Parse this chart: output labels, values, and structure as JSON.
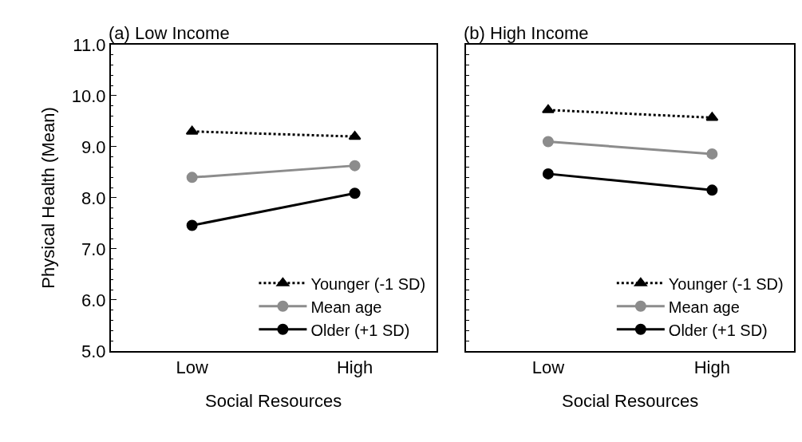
{
  "chart_data": [
    {
      "type": "line",
      "title": "(a) Low Income",
      "xlabel": "Social Resources",
      "ylabel": "Physical Health (Mean)",
      "categories": [
        "Low",
        "High"
      ],
      "ylim": [
        5,
        11
      ],
      "yticks": [
        {
          "value": 5,
          "label": "5.0"
        },
        {
          "value": 6,
          "label": "6.0"
        },
        {
          "value": 7,
          "label": "7.0"
        },
        {
          "value": 8,
          "label": "8.0"
        },
        {
          "value": 9,
          "label": "9.0"
        },
        {
          "value": 10,
          "label": "10.0"
        },
        {
          "value": 11,
          "label": "11.0"
        }
      ],
      "legend": "bottom right",
      "series": [
        {
          "name": "Younger (-1 SD)",
          "color": "#000000",
          "values": [
            9.3,
            9.2
          ],
          "marker": "triangle",
          "line_style": "dotted"
        },
        {
          "name": "Mean age",
          "color": "#8c8c8c",
          "values": [
            8.4,
            8.63
          ],
          "marker": "circle",
          "line_style": "solid"
        },
        {
          "name": "Older (+1 SD)",
          "color": "#000000",
          "values": [
            7.46,
            8.09
          ],
          "marker": "circle",
          "line_style": "solid"
        }
      ]
    },
    {
      "type": "line",
      "title": "(b) High Income",
      "xlabel": "Social Resources",
      "categories": [
        "Low",
        "High"
      ],
      "ylim": [
        5,
        11
      ],
      "yticks": [
        {
          "value": 5,
          "label": null
        },
        {
          "value": 6,
          "label": null
        },
        {
          "value": 7,
          "label": null
        },
        {
          "value": 8,
          "label": null
        },
        {
          "value": 9,
          "label": null
        },
        {
          "value": 10,
          "label": null
        },
        {
          "value": 11,
          "label": null
        }
      ],
      "tick_labels": "x",
      "legend": "bottom right",
      "series": [
        {
          "name": "Younger (-1 SD)",
          "color": "#000000",
          "values": [
            9.72,
            9.57
          ],
          "marker": "triangle",
          "line_style": "dotted"
        },
        {
          "name": "Mean age",
          "color": "#8c8c8c",
          "values": [
            9.1,
            8.86
          ],
          "marker": "circle",
          "line_style": "solid"
        },
        {
          "name": "Older (+1 SD)",
          "color": "#000000",
          "values": [
            8.47,
            8.15
          ],
          "marker": "circle",
          "line_style": "solid"
        }
      ]
    }
  ]
}
